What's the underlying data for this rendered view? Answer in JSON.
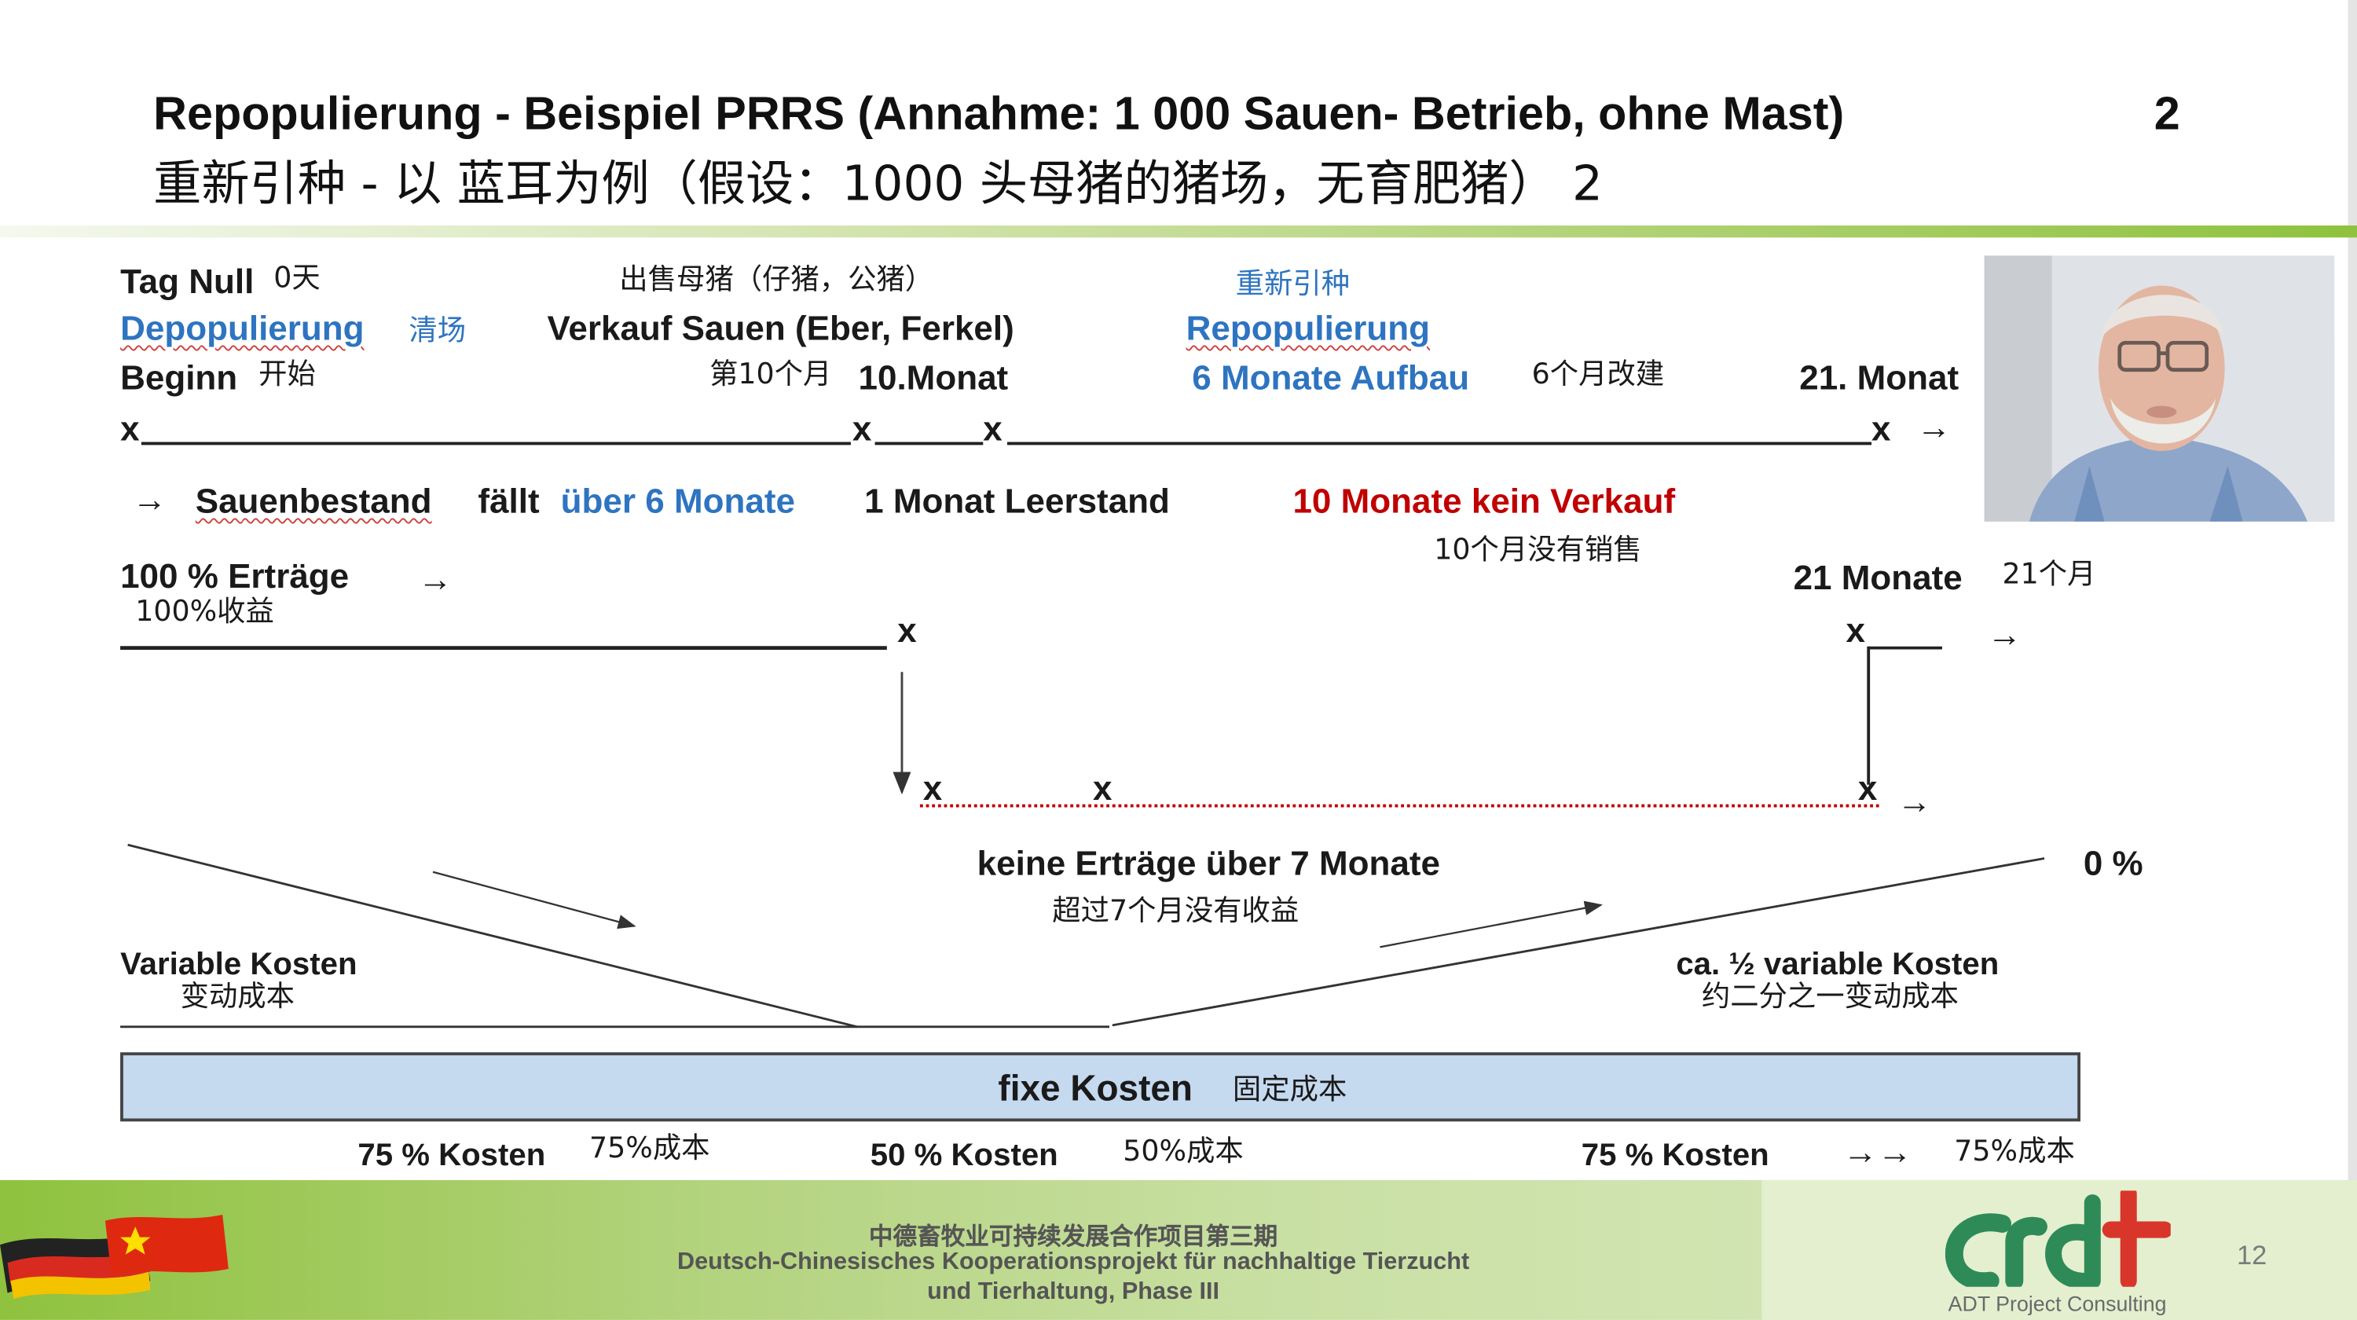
{
  "slide": {
    "title_de": "Repopulierung  - Beispiel PRRS (Annahme: 1 000 Sauen- Betrieb, ohne Mast)",
    "title_de_num": "2",
    "title_zh": "重新引种 - 以 蓝耳为例（假设：1000 头母猪的猪场，无育肥猪） 2",
    "page_number": "12"
  },
  "timeline": {
    "day_zero": "Tag Null",
    "day_zero_zh": "0天",
    "depop": "Depopulierung",
    "depop_zh": "清场",
    "begin": "Beginn",
    "begin_zh": "开始",
    "sale_zh": "出售母猪（仔猪，公猪）",
    "sale": "Verkauf Sauen (Eber, Ferkel)",
    "month10_zh": "第10个月",
    "month10": "10.Monat",
    "repop_zh": "重新引种",
    "repop": "Repopulierung",
    "aufbau": "6 Monate Aufbau",
    "aufbau_zh": "6个月改建",
    "month21": "21. Monat",
    "marker": "x",
    "arrow": "→",
    "double_arrow": "→→"
  },
  "phases": {
    "sow_falls_pre": "Sauenbestand",
    "sow_falls_mid": "fällt",
    "sow_falls_blue": "über 6 Monate",
    "leerstand": "1 Monat Leerstand",
    "no_sale": "10  Monate kein Verkauf",
    "no_sale_zh": "10个月没有销售"
  },
  "revenue": {
    "full": "100 % Erträge",
    "full_zh": "100%收益",
    "months21": "21 Monate",
    "months21_zh": "21个月",
    "none": "keine Erträge über 7  Monate",
    "none_zh": "超过7个月没有收益",
    "zero_pct": "0 %"
  },
  "costs": {
    "variable": "Variable Kosten",
    "variable_zh": "变动成本",
    "half_variable": "ca. ½ variable Kosten",
    "half_variable_zh": "约二分之一变动成本",
    "fixed": "fixe Kosten",
    "fixed_zh": "固定成本",
    "pct75_left": "75 % Kosten",
    "pct75_left_zh": "75%成本",
    "pct50": "50 %  Kosten",
    "pct50_zh": "50%成本",
    "pct75_right": "75 % Kosten",
    "pct75_right_zh": "75%成本"
  },
  "footer": {
    "line_zh": "中德畜牧业可持续发展合作项目第三期",
    "line_de1": "Deutsch-Chinesisches Kooperationsprojekt für nachhaltige Tierzucht",
    "line_de2": "und Tierhaltung, Phase III",
    "company": "ADT Project Consulting"
  },
  "colors": {
    "accent_blue": "#2e74c0",
    "accent_red": "#c00000",
    "fixed_bar": "#c5d9ef",
    "footer_green": "#8fc23e",
    "logo_green": "#2e8b57",
    "logo_red": "#d9362b"
  }
}
